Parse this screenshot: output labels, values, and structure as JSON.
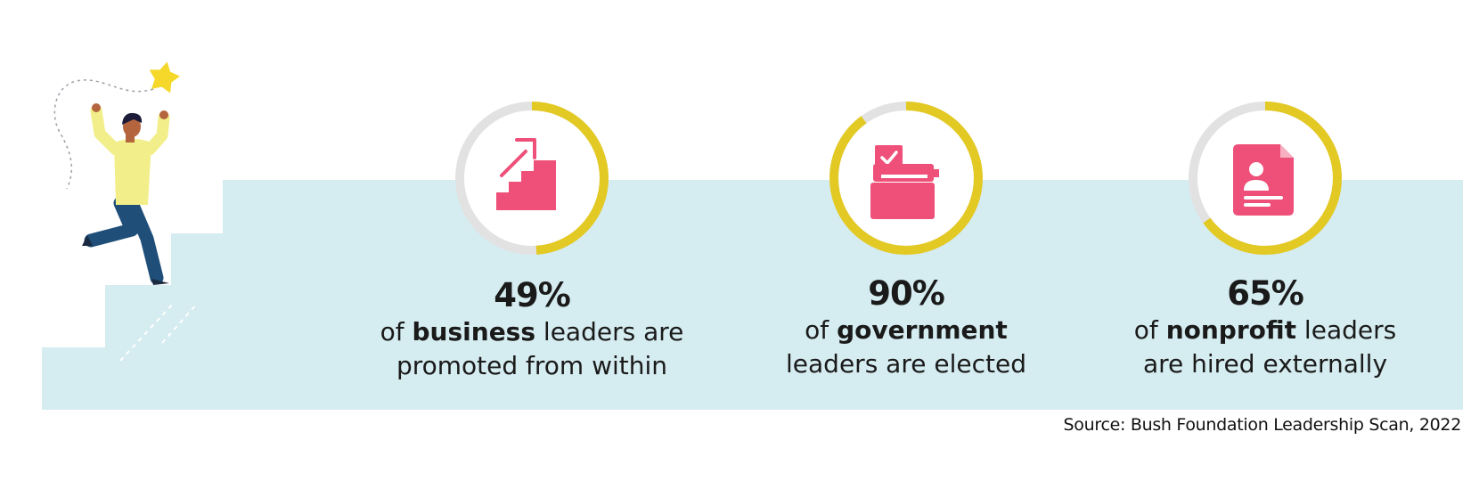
{
  "stats": [
    {
      "percent": "49%",
      "value": 49,
      "pre": "of ",
      "bold": "business",
      "post": " leaders are",
      "line2": "promoted from within",
      "icon": "stairs-arrow-icon"
    },
    {
      "percent": "90%",
      "value": 90,
      "pre": "of ",
      "bold": "government",
      "post": "",
      "line2": "leaders are elected",
      "icon": "ballot-box-icon"
    },
    {
      "percent": "65%",
      "value": 65,
      "pre": "of ",
      "bold": "nonprofit",
      "post": " leaders",
      "line2": "are hired externally",
      "icon": "resume-document-icon"
    }
  ],
  "source": "Source: Bush Foundation Leadership Scan, 2022",
  "colors": {
    "stairs_bg": "#d5ecf0",
    "ring_fill": "#e3c923",
    "ring_track": "#e2e2e2",
    "icon": "#ee5079",
    "figure_shirt": "#f2ef8a",
    "figure_pants": "#1f4e79",
    "star": "#f5d82a"
  }
}
